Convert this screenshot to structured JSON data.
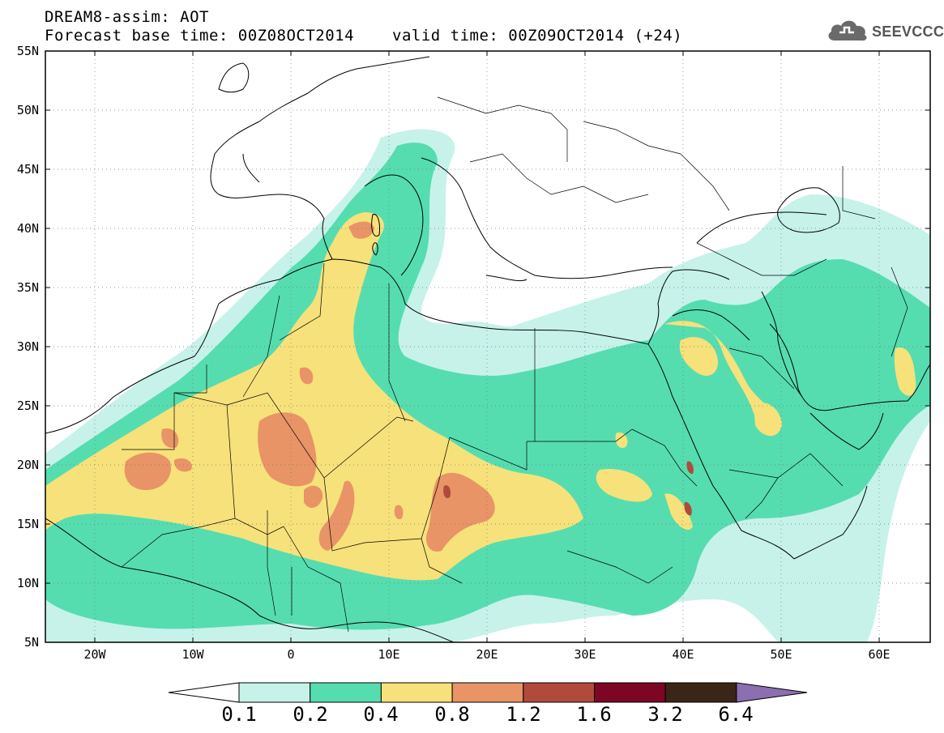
{
  "title": {
    "line1": "DREAM8-assim: AOT",
    "line2": "Forecast base time: 00Z08OCT2014",
    "valid": "valid time: 00Z09OCT2014 (+24)"
  },
  "logo": {
    "text": "SEEVCCC",
    "icon": "cloud-icon"
  },
  "axes": {
    "lat_labels": [
      "55N",
      "50N",
      "45N",
      "40N",
      "35N",
      "30N",
      "25N",
      "20N",
      "15N",
      "10N",
      "5N"
    ],
    "lon_labels": [
      "20W",
      "10W",
      "0",
      "10E",
      "20E",
      "30E",
      "40E",
      "50E",
      "60E"
    ]
  },
  "colorbar": {
    "labels": [
      "0.1",
      "0.2",
      "0.4",
      "0.8",
      "1.2",
      "1.6",
      "3.2",
      "6.4"
    ],
    "colors": [
      "#ffffff",
      "#c6f2ea",
      "#55ddb0",
      "#f7e17a",
      "#e89466",
      "#b04a3c",
      "#7c0623",
      "#3a2618",
      "#8c6fb0"
    ]
  }
}
